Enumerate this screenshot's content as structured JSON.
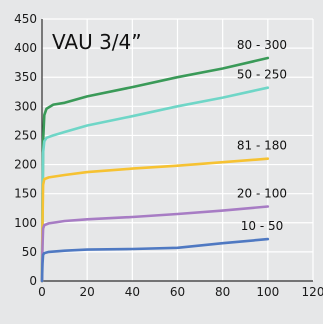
{
  "chart_data": {
    "type": "line",
    "title": "VAU 3/4”",
    "xlabel": "",
    "ylabel": "",
    "xlim": [
      0,
      120
    ],
    "ylim": [
      0,
      450
    ],
    "x_ticks": [
      0,
      20,
      40,
      60,
      80,
      100,
      120
    ],
    "y_ticks": [
      0,
      50,
      100,
      150,
      200,
      250,
      300,
      350,
      400,
      450
    ],
    "grid": true,
    "series": [
      {
        "name": "80 - 300",
        "color": "#3a9a58",
        "points": [
          [
            0,
            0
          ],
          [
            0.2,
            120
          ],
          [
            0.5,
            240
          ],
          [
            1,
            285
          ],
          [
            2,
            296
          ],
          [
            5,
            303
          ],
          [
            10,
            306
          ],
          [
            20,
            317
          ],
          [
            40,
            333
          ],
          [
            60,
            350
          ],
          [
            80,
            365
          ],
          [
            100,
            383
          ]
        ]
      },
      {
        "name": "50 - 250",
        "color": "#6fd6c7",
        "points": [
          [
            0,
            0
          ],
          [
            0.2,
            120
          ],
          [
            0.5,
            220
          ],
          [
            1,
            240
          ],
          [
            2,
            246
          ],
          [
            5,
            250
          ],
          [
            10,
            256
          ],
          [
            20,
            267
          ],
          [
            40,
            283
          ],
          [
            60,
            300
          ],
          [
            80,
            315
          ],
          [
            100,
            332
          ]
        ]
      },
      {
        "name": "81 - 180",
        "color": "#f6c232",
        "points": [
          [
            0,
            0
          ],
          [
            0.2,
            100
          ],
          [
            0.5,
            165
          ],
          [
            1,
            175
          ],
          [
            3,
            178
          ],
          [
            10,
            182
          ],
          [
            20,
            187
          ],
          [
            40,
            193
          ],
          [
            60,
            198
          ],
          [
            80,
            204
          ],
          [
            100,
            210
          ]
        ]
      },
      {
        "name": "20 - 100",
        "color": "#a77cc4",
        "points": [
          [
            0,
            0
          ],
          [
            0.2,
            60
          ],
          [
            0.5,
            90
          ],
          [
            1,
            96
          ],
          [
            3,
            99
          ],
          [
            10,
            103
          ],
          [
            20,
            106
          ],
          [
            40,
            110
          ],
          [
            60,
            115
          ],
          [
            80,
            121
          ],
          [
            100,
            128
          ]
        ]
      },
      {
        "name": "10 - 50",
        "color": "#4f79c2",
        "points": [
          [
            0,
            0
          ],
          [
            0.2,
            30
          ],
          [
            0.5,
            45
          ],
          [
            1,
            48
          ],
          [
            3,
            50
          ],
          [
            10,
            52
          ],
          [
            20,
            54
          ],
          [
            40,
            55
          ],
          [
            60,
            57
          ],
          [
            80,
            65
          ],
          [
            100,
            72
          ]
        ]
      }
    ]
  }
}
